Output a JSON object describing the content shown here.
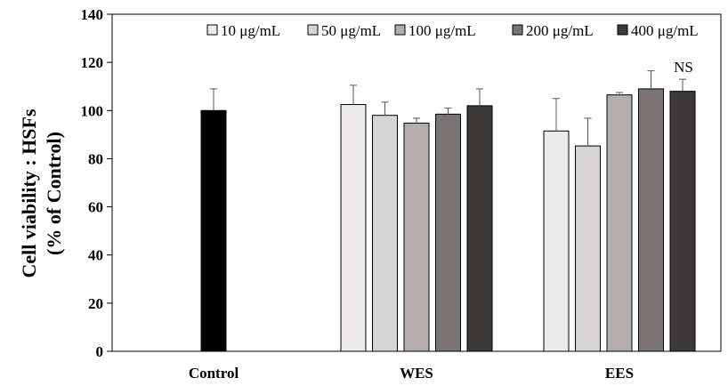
{
  "chart_data": {
    "type": "bar",
    "title": "",
    "xlabel": "",
    "ylabel_lines": [
      "Cell viability : HSFs",
      "(% of Control)"
    ],
    "ylim": [
      0,
      140
    ],
    "yticks": [
      "0",
      "20",
      "40",
      "60",
      "80",
      "100",
      "120",
      "140"
    ],
    "ytick_values": [
      0,
      20,
      40,
      60,
      80,
      100,
      120,
      140
    ],
    "categories": [
      "Control",
      "WES",
      "EES"
    ],
    "control": {
      "name": "Control",
      "value": 100,
      "error": 9,
      "color": "#000000"
    },
    "series": [
      {
        "name": "10 μg/mL",
        "color": "#eceaea",
        "values": [
          null,
          102.5,
          91.5
        ],
        "errors": [
          null,
          8,
          13.5
        ]
      },
      {
        "name": "50 μg/mL",
        "color": "#d6d4d4",
        "values": [
          null,
          98,
          85.3
        ],
        "errors": [
          null,
          5.5,
          11.5
        ]
      },
      {
        "name": "100 μg/mL",
        "color": "#b3adac",
        "values": [
          null,
          94.8,
          106.5
        ],
        "errors": [
          null,
          2,
          1
        ]
      },
      {
        "name": "200 μg/mL",
        "color": "#7a7574",
        "values": [
          null,
          98.5,
          109
        ],
        "errors": [
          null,
          2.5,
          7.5
        ]
      },
      {
        "name": "400 μg/mL",
        "color": "#3d3939",
        "values": [
          null,
          102,
          108
        ],
        "errors": [
          null,
          7,
          5
        ]
      }
    ],
    "legend_position": "top-right",
    "annotations": [
      {
        "text": "NS",
        "category": "EES",
        "series_index": 4
      }
    ]
  }
}
